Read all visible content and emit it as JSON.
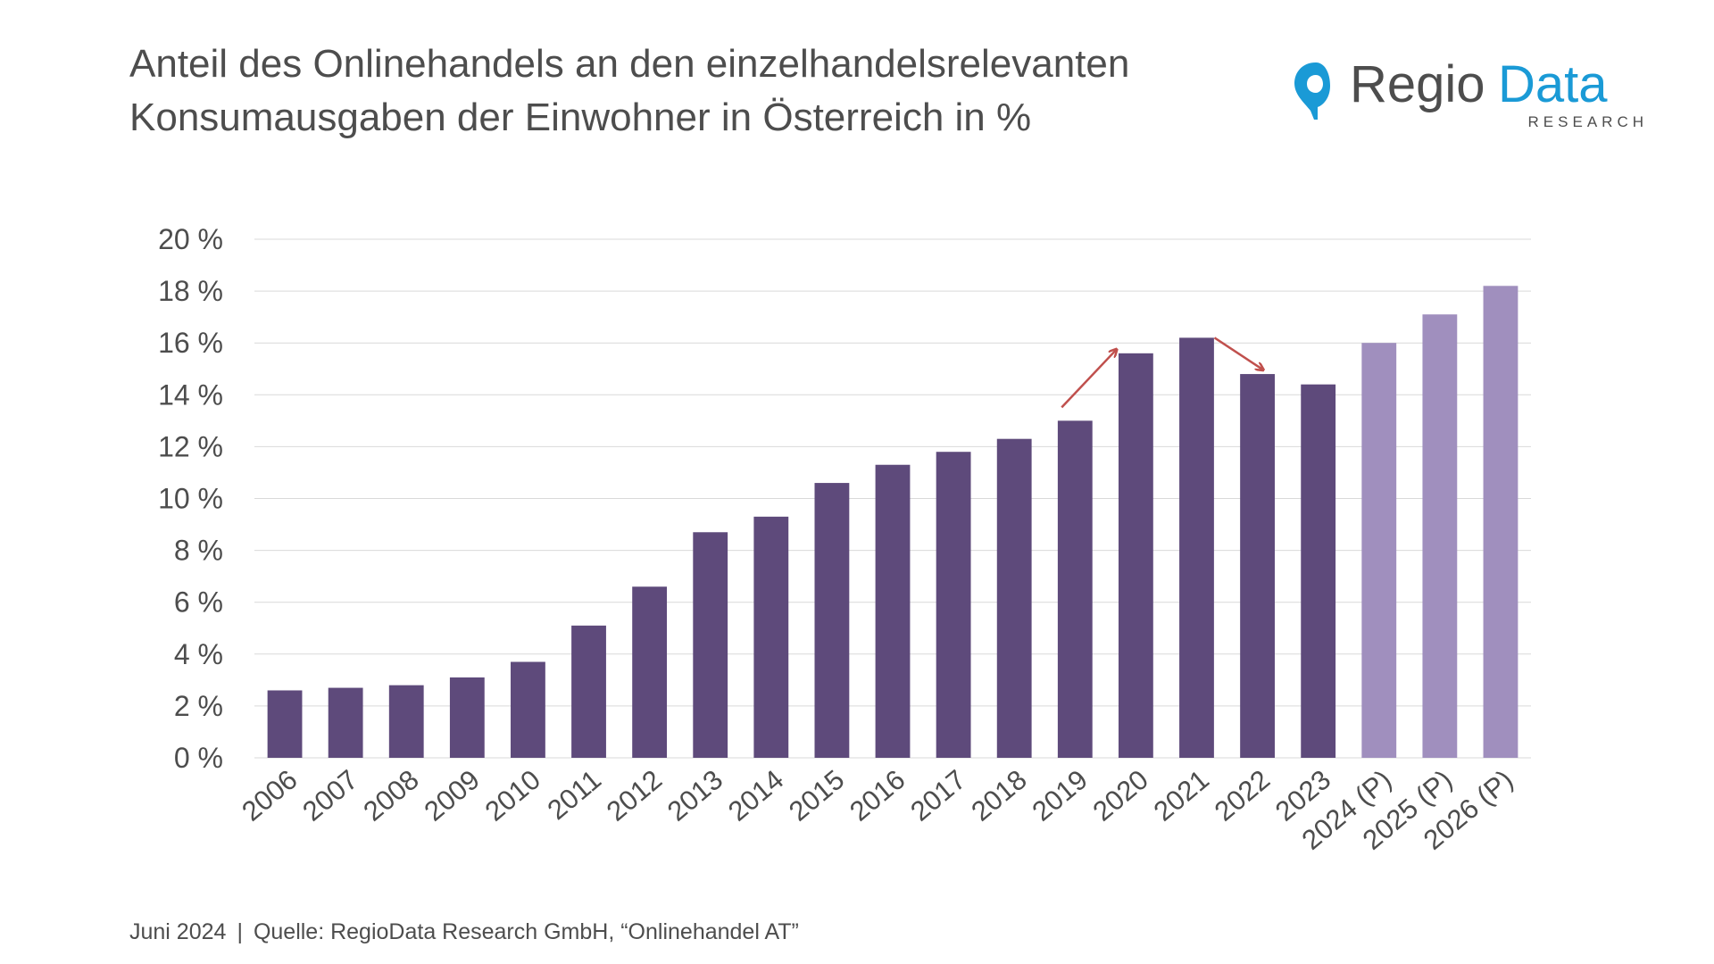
{
  "title": {
    "line1": "Anteil des Onlinehandels an den einzelhandelsrelevanten",
    "line2": "Konsumausgaben der Einwohner in Österreich in %"
  },
  "logo": {
    "brand_part1": "Regio",
    "brand_part2": "Data",
    "subtitle": "RESEARCH",
    "colors": {
      "part1": "#4d4d4d",
      "part2": "#1a9ad6",
      "pin": "#1a9ad6"
    }
  },
  "footer": {
    "date": "Juni 2024",
    "separator": "|",
    "source": "Quelle: RegioData Research GmbH, “Onlinehandel AT”"
  },
  "chart_data": {
    "type": "bar",
    "categories": [
      "2006",
      "2007",
      "2008",
      "2009",
      "2010",
      "2011",
      "2012",
      "2013",
      "2014",
      "2015",
      "2016",
      "2017",
      "2018",
      "2019",
      "2020",
      "2021",
      "2022",
      "2023",
      "2024 (P)",
      "2025 (P)",
      "2026 (P)"
    ],
    "values": [
      2.6,
      2.7,
      2.8,
      3.1,
      3.7,
      5.1,
      6.6,
      8.7,
      9.3,
      10.6,
      11.3,
      11.8,
      12.3,
      13.0,
      15.6,
      16.2,
      14.8,
      14.4,
      16.0,
      17.1,
      18.2
    ],
    "projected": [
      false,
      false,
      false,
      false,
      false,
      false,
      false,
      false,
      false,
      false,
      false,
      false,
      false,
      false,
      false,
      false,
      false,
      false,
      true,
      true,
      true
    ],
    "ylim": [
      0,
      20
    ],
    "ytick_labels": [
      "0 %",
      "2 %",
      "4 %",
      "6 %",
      "8 %",
      "10 %",
      "12 %",
      "14 %",
      "16 %",
      "18 %",
      "20 %"
    ],
    "ytick_values": [
      0,
      2,
      4,
      6,
      8,
      10,
      12,
      14,
      16,
      18,
      20
    ],
    "grid": true,
    "colors": {
      "actual": "#5e4a7b",
      "projected": "#a08fbe",
      "grid": "#d9d9d9",
      "arrow": "#c0504d"
    },
    "annotations": [
      {
        "type": "arrow-up",
        "between": [
          "2019",
          "2020"
        ]
      },
      {
        "type": "arrow-down",
        "between": [
          "2021",
          "2022"
        ]
      }
    ]
  }
}
